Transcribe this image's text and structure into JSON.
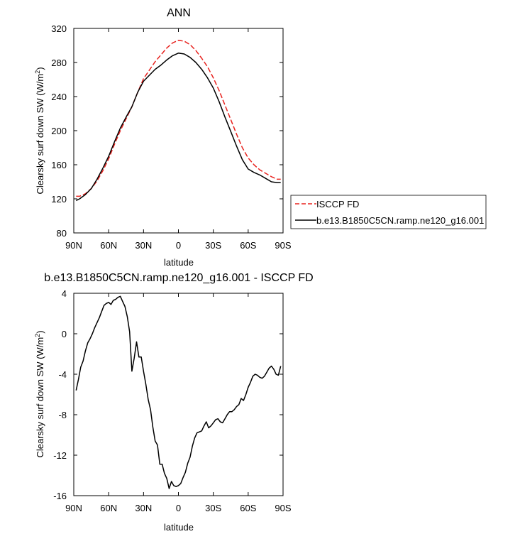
{
  "chart_data": [
    {
      "type": "line",
      "title": "ANN",
      "xlabel": "latitude",
      "ylabel": "Clearsky surf down SW (W/m",
      "ylabel_sup": "2",
      "ylabel_tail": ")",
      "xlim": [
        90,
        -90
      ],
      "ylim": [
        80,
        320
      ],
      "xticks": [
        90,
        60,
        30,
        0,
        -30,
        -60,
        -90
      ],
      "xtick_labels": [
        "90N",
        "60N",
        "30N",
        "0",
        "30S",
        "60S",
        "90S"
      ],
      "yticks": [
        80,
        120,
        160,
        200,
        240,
        280,
        320
      ],
      "ytick_labels": [
        "80",
        "120",
        "160",
        "200",
        "240",
        "280",
        "320"
      ],
      "legend": "outside-right",
      "series": [
        {
          "name": "ISCCP FD",
          "color": "#e8231f",
          "dash": "dashed",
          "x": [
            88,
            85,
            80,
            75,
            70,
            65,
            60,
            55,
            50,
            45,
            40,
            35,
            30,
            25,
            20,
            15,
            10,
            5,
            0,
            -5,
            -10,
            -15,
            -20,
            -25,
            -30,
            -35,
            -40,
            -45,
            -50,
            -55,
            -60,
            -65,
            -70,
            -75,
            -80,
            -85,
            -88
          ],
          "y": [
            123,
            123,
            126,
            132,
            141,
            153,
            167,
            184,
            200,
            214,
            228,
            245,
            261,
            271,
            281,
            289,
            297,
            303,
            306,
            305,
            301,
            294,
            285,
            275,
            262,
            247,
            230,
            213,
            196,
            180,
            168,
            160,
            154,
            150,
            146,
            143,
            143
          ]
        },
        {
          "name": "b.e13.B1850C5CN.ramp.ne120_g16.001",
          "color": "#000000",
          "dash": "solid",
          "x": [
            88,
            85,
            80,
            75,
            70,
            65,
            60,
            55,
            50,
            45,
            40,
            35,
            30,
            25,
            20,
            15,
            10,
            5,
            0,
            -5,
            -10,
            -15,
            -20,
            -25,
            -30,
            -35,
            -40,
            -45,
            -50,
            -55,
            -60,
            -65,
            -70,
            -75,
            -80,
            -85,
            -88
          ],
          "y": [
            118,
            120,
            125,
            132,
            143,
            156,
            170,
            187,
            203,
            216,
            228,
            245,
            258,
            265,
            272,
            277,
            283,
            288,
            291,
            290,
            286,
            280,
            272,
            262,
            250,
            234,
            216,
            199,
            182,
            166,
            155,
            151,
            148,
            144,
            140,
            139,
            139
          ]
        }
      ]
    },
    {
      "type": "line",
      "title": "b.e13.B1850C5CN.ramp.ne120_g16.001 - ISCCP FD",
      "xlabel": "latitude",
      "ylabel": "Clearsky surf down SW (W/m",
      "ylabel_sup": "2",
      "ylabel_tail": ")",
      "xlim": [
        90,
        -90
      ],
      "ylim": [
        -16,
        4
      ],
      "xticks": [
        90,
        60,
        30,
        0,
        -30,
        -60,
        -90
      ],
      "xtick_labels": [
        "90N",
        "60N",
        "30N",
        "0",
        "30S",
        "60S",
        "90S"
      ],
      "yticks": [
        -16,
        -12,
        -8,
        -4,
        0,
        4
      ],
      "ytick_labels": [
        "-16",
        "-12",
        "-8",
        "-4",
        "0",
        "4"
      ],
      "series": [
        {
          "color": "#000000",
          "dash": "solid",
          "x": [
            88,
            86,
            84,
            82,
            80,
            78,
            76,
            74,
            72,
            70,
            68,
            66,
            64,
            62,
            60,
            58,
            56,
            54,
            52,
            50,
            48,
            46,
            44,
            42,
            40,
            38,
            36,
            34,
            32,
            30,
            28,
            26,
            24,
            22,
            20,
            18,
            16,
            14,
            12,
            10,
            8,
            6,
            4,
            2,
            0,
            -2,
            -4,
            -6,
            -8,
            -10,
            -12,
            -14,
            -16,
            -18,
            -20,
            -22,
            -24,
            -26,
            -28,
            -30,
            -32,
            -34,
            -36,
            -38,
            -40,
            -42,
            -44,
            -46,
            -48,
            -50,
            -52,
            -54,
            -56,
            -58,
            -60,
            -62,
            -64,
            -66,
            -68,
            -70,
            -72,
            -74,
            -76,
            -78,
            -80,
            -82,
            -84,
            -86,
            -88
          ],
          "y": [
            -5.6,
            -4.5,
            -3.3,
            -2.7,
            -1.7,
            -0.9,
            -0.5,
            0.0,
            0.6,
            1.1,
            1.6,
            2.2,
            2.8,
            3.0,
            3.1,
            2.9,
            3.3,
            3.4,
            3.6,
            3.7,
            3.2,
            2.7,
            1.7,
            0.2,
            -3.7,
            -2.4,
            -0.8,
            -2.3,
            -2.3,
            -3.7,
            -5.0,
            -6.5,
            -7.5,
            -9.2,
            -10.6,
            -11.0,
            -12.9,
            -12.9,
            -13.8,
            -14.3,
            -15.3,
            -14.6,
            -15.0,
            -15.1,
            -15.0,
            -14.8,
            -14.2,
            -13.7,
            -12.8,
            -12.2,
            -11.1,
            -10.3,
            -9.8,
            -9.7,
            -9.6,
            -9.1,
            -8.7,
            -9.3,
            -9.1,
            -8.8,
            -8.5,
            -8.4,
            -8.7,
            -8.8,
            -8.4,
            -8.0,
            -7.7,
            -7.7,
            -7.5,
            -7.2,
            -7.0,
            -6.4,
            -6.6,
            -6.0,
            -5.3,
            -4.8,
            -4.2,
            -4.0,
            -4.1,
            -4.3,
            -4.4,
            -4.2,
            -3.8,
            -3.4,
            -3.2,
            -3.5,
            -4.0,
            -4.1,
            -3.2
          ]
        }
      ]
    }
  ]
}
